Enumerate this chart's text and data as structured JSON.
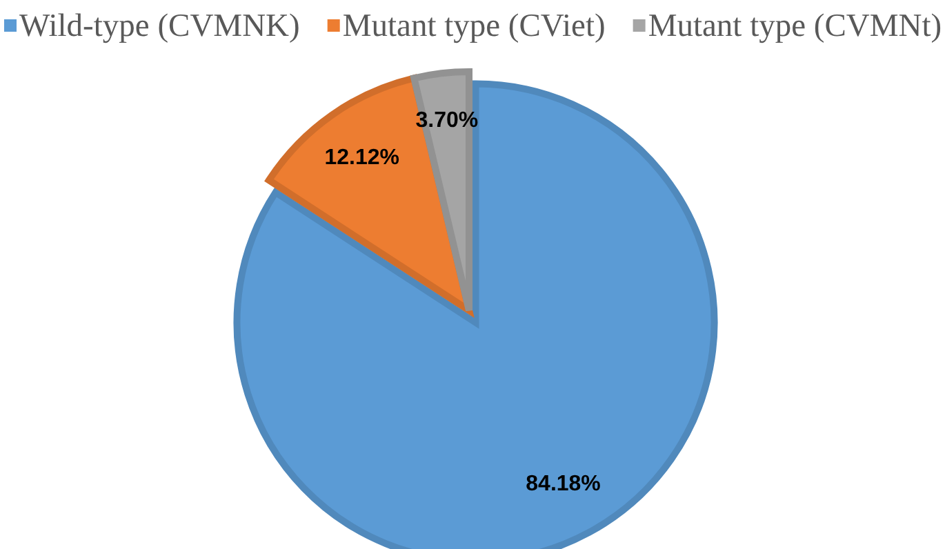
{
  "chart_data": {
    "type": "pie",
    "categories": [
      "Wild-type (CVMNK)",
      "Mutant type (CViet)",
      "Mutant type (CVMNt)"
    ],
    "values": [
      84.18,
      12.12,
      3.7
    ],
    "colors": [
      "#5b9bd5",
      "#ed7d31",
      "#a5a5a5"
    ],
    "value_labels": [
      "84.18%",
      "12.12%",
      "3.70%"
    ],
    "legend": "top"
  }
}
